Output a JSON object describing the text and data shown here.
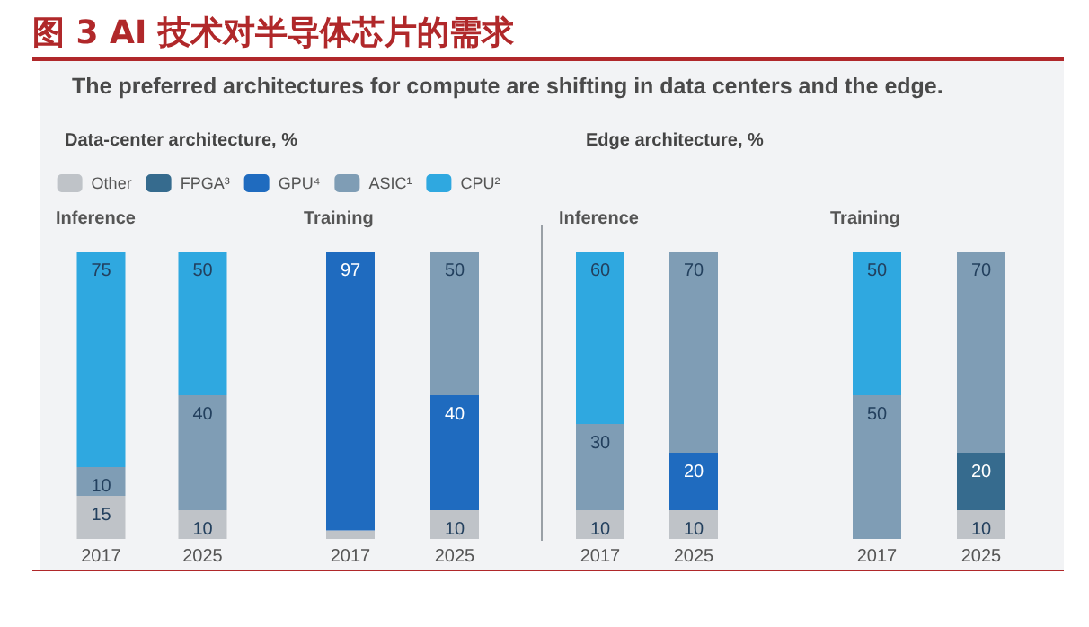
{
  "chart_data": [
    {
      "type": "bar",
      "title": "Inference",
      "stacked": true,
      "legend": "top",
      "categories": [
        "2017",
        "2025"
      ],
      "annotations": [
        "图 3 AI 技术对半导体芯片的需求",
        "The preferred architectures for compute are shifting in data centers and the edge.",
        "Data-center architecture, %"
      ],
      "series": [
        {
          "name": "Other",
          "color": "#bfc3c8",
          "values": [
            15,
            10
          ],
          "value_labels": [
            "15",
            "10"
          ]
        },
        {
          "name": "FPGA³",
          "color": "#366b8e",
          "values": [
            null,
            null
          ]
        },
        {
          "name": "GPU⁴",
          "color": "#1f6bbf",
          "values": [
            null,
            null
          ]
        },
        {
          "name": "ASIC¹",
          "color": "#7f9db5",
          "values": [
            10,
            40
          ],
          "value_labels": [
            "10",
            "40"
          ]
        },
        {
          "name": "CPU²",
          "color": "#2fa8e0",
          "values": [
            75,
            50
          ],
          "value_labels": [
            "75",
            "50"
          ]
        }
      ]
    },
    {
      "type": "bar",
      "title": "Training",
      "stacked": true,
      "categories": [
        "2017",
        "2025"
      ],
      "series": [
        {
          "color": "#bfc3c8",
          "values": [
            3,
            10
          ],
          "value_labels": [
            null,
            "10"
          ]
        },
        {
          "color": "#1f6bbf",
          "values": [
            97,
            40
          ],
          "value_labels": [
            "97",
            "40"
          ]
        },
        {
          "color": "#7f9db5",
          "values": [
            null,
            50
          ],
          "value_labels": [
            null,
            "50"
          ]
        }
      ]
    },
    {
      "type": "bar",
      "title": "Inference",
      "stacked": true,
      "categories": [
        "2017",
        "2025"
      ],
      "annotations": [
        "Edge architecture, %"
      ],
      "series": [
        {
          "color": "#bfc3c8",
          "values": [
            10,
            10
          ],
          "value_labels": [
            "10",
            "10"
          ]
        },
        {
          "color": "#1f6bbf",
          "values": [
            null,
            20
          ],
          "value_labels": [
            null,
            "20"
          ]
        },
        {
          "color": "#7f9db5",
          "values": [
            30,
            70
          ],
          "value_labels": [
            "30",
            "70"
          ]
        },
        {
          "color": "#2fa8e0",
          "values": [
            60,
            null
          ],
          "value_labels": [
            "60",
            null
          ]
        }
      ]
    },
    {
      "type": "bar",
      "title": "Training",
      "stacked": true,
      "categories": [
        "2017",
        "2025"
      ],
      "series": [
        {
          "color": "#bfc3c8",
          "values": [
            null,
            10
          ],
          "value_labels": [
            null,
            "10"
          ]
        },
        {
          "color": "#366b8e",
          "values": [
            null,
            20
          ],
          "value_labels": [
            null,
            "20"
          ]
        },
        {
          "color": "#7f9db5",
          "values": [
            50,
            70
          ],
          "value_labels": [
            "50",
            "70"
          ]
        },
        {
          "color": "#2fa8e0",
          "values": [
            50,
            null
          ],
          "value_labels": [
            "50",
            null
          ]
        }
      ]
    }
  ]
}
